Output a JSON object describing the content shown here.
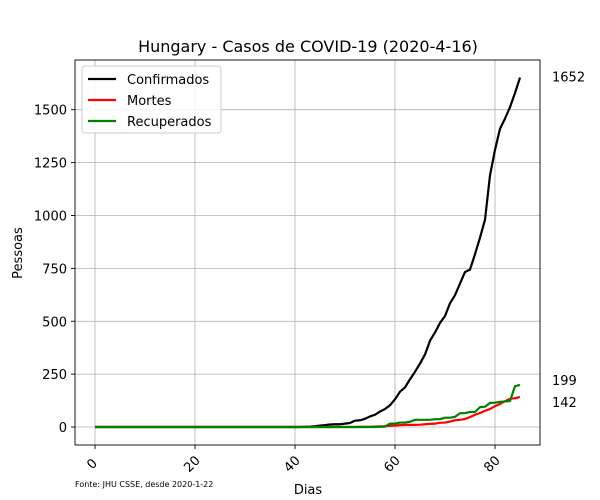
{
  "chart_data": {
    "type": "line",
    "title": "Hungary - Casos de COVID-19 (2020-4-16)",
    "xlabel": "Dias",
    "ylabel": "Pessoas",
    "xlim": [
      -4,
      89
    ],
    "ylim": [
      -85,
      1735
    ],
    "xticks": [
      0,
      20,
      40,
      60,
      80
    ],
    "yticks": [
      0,
      250,
      500,
      750,
      1000,
      1250,
      1500
    ],
    "grid": true,
    "legend_position": "top-left",
    "footnote": "Fonte: JHU CSSE, desde 2020-1-22",
    "series": [
      {
        "name": "Confirmados",
        "color": "#000000",
        "end_label": "1652",
        "points": [
          [
            0,
            0
          ],
          [
            41,
            0
          ],
          [
            42,
            1
          ],
          [
            43,
            2
          ],
          [
            44,
            4
          ],
          [
            45,
            7
          ],
          [
            46,
            9
          ],
          [
            47,
            12
          ],
          [
            48,
            13
          ],
          [
            49,
            13
          ],
          [
            50,
            16
          ],
          [
            51,
            19
          ],
          [
            52,
            30
          ],
          [
            53,
            32
          ],
          [
            54,
            39
          ],
          [
            55,
            50
          ],
          [
            56,
            58
          ],
          [
            57,
            73
          ],
          [
            58,
            85
          ],
          [
            59,
            103
          ],
          [
            60,
            131
          ],
          [
            61,
            167
          ],
          [
            62,
            187
          ],
          [
            63,
            226
          ],
          [
            64,
            261
          ],
          [
            65,
            300
          ],
          [
            66,
            343
          ],
          [
            67,
            408
          ],
          [
            68,
            447
          ],
          [
            69,
            492
          ],
          [
            70,
            525
          ],
          [
            71,
            585
          ],
          [
            72,
            623
          ],
          [
            73,
            678
          ],
          [
            74,
            733
          ],
          [
            75,
            744
          ],
          [
            76,
            817
          ],
          [
            77,
            895
          ],
          [
            78,
            980
          ],
          [
            79,
            1190
          ],
          [
            80,
            1310
          ],
          [
            81,
            1410
          ],
          [
            82,
            1458
          ],
          [
            83,
            1512
          ],
          [
            84,
            1579
          ],
          [
            85,
            1652
          ]
        ]
      },
      {
        "name": "Mortes",
        "color": "#ff0000",
        "end_label": "142",
        "points": [
          [
            0,
            0
          ],
          [
            52,
            0
          ],
          [
            53,
            1
          ],
          [
            55,
            1
          ],
          [
            56,
            2
          ],
          [
            57,
            3
          ],
          [
            58,
            4
          ],
          [
            59,
            6
          ],
          [
            60,
            7
          ],
          [
            61,
            9
          ],
          [
            62,
            10
          ],
          [
            63,
            10
          ],
          [
            64,
            10
          ],
          [
            65,
            11
          ],
          [
            66,
            13
          ],
          [
            67,
            15
          ],
          [
            68,
            16
          ],
          [
            69,
            20
          ],
          [
            70,
            21
          ],
          [
            71,
            26
          ],
          [
            72,
            32
          ],
          [
            73,
            34
          ],
          [
            74,
            38
          ],
          [
            75,
            47
          ],
          [
            76,
            58
          ],
          [
            77,
            66
          ],
          [
            78,
            77
          ],
          [
            79,
            85
          ],
          [
            80,
            99
          ],
          [
            81,
            109
          ],
          [
            82,
            122
          ],
          [
            83,
            134
          ],
          [
            84,
            136
          ],
          [
            85,
            142
          ]
        ]
      },
      {
        "name": "Recuperados",
        "color": "#008000",
        "end_label": "199",
        "points": [
          [
            0,
            0
          ],
          [
            56,
            0
          ],
          [
            57,
            1
          ],
          [
            58,
            2
          ],
          [
            59,
            16
          ],
          [
            60,
            16
          ],
          [
            61,
            21
          ],
          [
            62,
            21
          ],
          [
            63,
            25
          ],
          [
            64,
            34
          ],
          [
            65,
            34
          ],
          [
            66,
            34
          ],
          [
            67,
            34
          ],
          [
            68,
            37
          ],
          [
            69,
            37
          ],
          [
            70,
            44
          ],
          [
            71,
            44
          ],
          [
            72,
            48
          ],
          [
            73,
            65
          ],
          [
            74,
            66
          ],
          [
            75,
            71
          ],
          [
            76,
            71
          ],
          [
            77,
            94
          ],
          [
            78,
            96
          ],
          [
            79,
            114
          ],
          [
            80,
            115
          ],
          [
            81,
            119
          ],
          [
            82,
            121
          ],
          [
            83,
            123
          ],
          [
            84,
            193
          ],
          [
            85,
            199
          ]
        ]
      }
    ]
  }
}
